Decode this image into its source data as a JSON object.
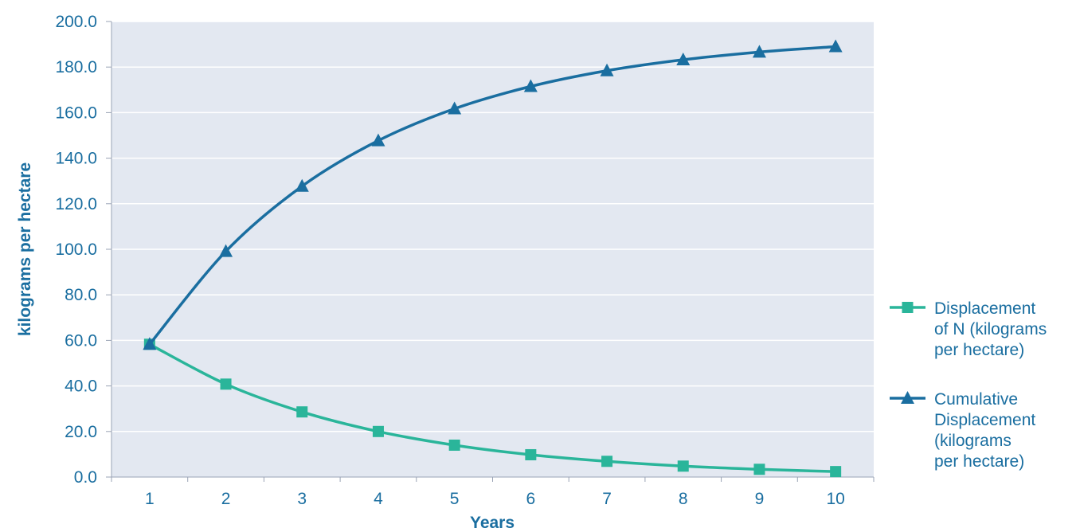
{
  "chart_data": {
    "type": "line",
    "xlabel": "Years",
    "ylabel": "kilograms per hectare",
    "categories": [
      "1",
      "2",
      "3",
      "4",
      "5",
      "6",
      "7",
      "8",
      "9",
      "10"
    ],
    "ylim": [
      0,
      200
    ],
    "yticks": [
      "0.0",
      "20.0",
      "40.0",
      "60.0",
      "80.0",
      "100.0",
      "120.0",
      "140.0",
      "160.0",
      "180.0",
      "200.0"
    ],
    "grid": true,
    "legend_position": "right",
    "series": [
      {
        "name": "Displacement of N (kilograms per hectare)",
        "legend_lines": [
          "Displacement",
          "of N (kilograms",
          "per hectare)"
        ],
        "marker": "square",
        "color": "#2ab59a",
        "values": [
          58.3,
          40.8,
          28.6,
          20.0,
          14.0,
          9.8,
          6.9,
          4.8,
          3.4,
          2.4
        ]
      },
      {
        "name": "Cumulative Displacement (kilograms per hectare)",
        "legend_lines": [
          "Cumulative",
          "Displacement",
          "(kilograms",
          "per hectare)"
        ],
        "marker": "triangle",
        "color": "#1a6ea0",
        "values": [
          58.3,
          99.1,
          127.7,
          147.7,
          161.7,
          171.5,
          178.4,
          183.2,
          186.6,
          189.0
        ]
      }
    ]
  },
  "colors": {
    "plot_background": "#e3e8f1",
    "gridline": "#ffffff",
    "text": "#1a6ea0"
  }
}
